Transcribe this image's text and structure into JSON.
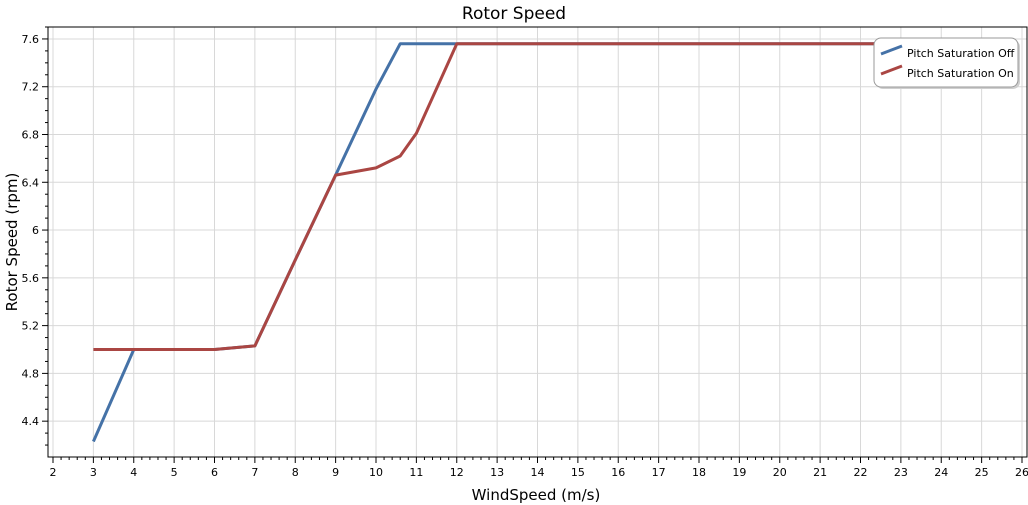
{
  "chart_data": {
    "type": "line",
    "title": "Rotor Speed",
    "xlabel": "WindSpeed (m/s)",
    "ylabel": "Rotor Speed (rpm)",
    "xlim": [
      2,
      26
    ],
    "ylim": [
      4.1,
      7.7
    ],
    "xticks": [
      2,
      3,
      4,
      5,
      6,
      7,
      8,
      9,
      10,
      11,
      12,
      13,
      14,
      15,
      16,
      17,
      18,
      19,
      20,
      21,
      22,
      23,
      24,
      25,
      26
    ],
    "yticks": [
      4.4,
      4.8,
      5.2,
      5.6,
      6,
      6.4,
      6.8,
      7.2,
      7.6
    ],
    "ytick_labels": [
      "4.4",
      "4.8",
      "5.2",
      "5.6",
      "6",
      "6.4",
      "6.8",
      "7.2",
      "7.6"
    ],
    "grid": true,
    "legend_position": "top-right",
    "series": [
      {
        "name": "Pitch Saturation Off",
        "color": "#4572a7",
        "x": [
          3,
          4,
          5,
          6,
          7,
          8,
          9,
          10,
          10.6,
          11,
          12,
          14,
          17,
          20,
          22.5
        ],
        "y": [
          4.23,
          5.0,
          5.0,
          5.0,
          5.03,
          5.75,
          6.46,
          7.18,
          7.56,
          7.56,
          7.56,
          7.56,
          7.56,
          7.56,
          7.56
        ]
      },
      {
        "name": "Pitch Saturation On",
        "color": "#aa4643",
        "x": [
          3,
          4,
          5,
          6,
          7,
          8,
          9,
          10,
          10.6,
          11,
          12,
          14,
          17,
          20,
          22.5
        ],
        "y": [
          5.0,
          5.0,
          5.0,
          5.0,
          5.03,
          5.75,
          6.46,
          6.52,
          6.62,
          6.81,
          7.56,
          7.56,
          7.56,
          7.56,
          7.56
        ]
      }
    ]
  }
}
